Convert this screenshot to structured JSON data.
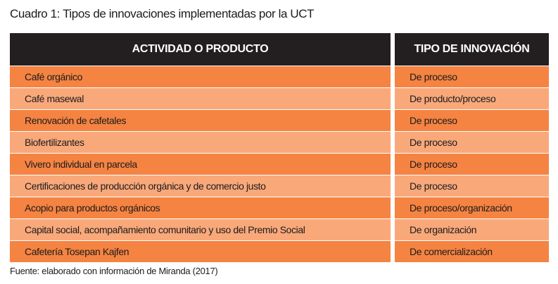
{
  "caption": "Cuadro 1: Tipos de innovaciones implementadas por la UCT",
  "headers": [
    "ACTIVIDAD O PRODUCTO",
    "TIPO DE INNOVACIÓN"
  ],
  "rows": [
    [
      "Café orgánico",
      "De proceso"
    ],
    [
      "Café masewal",
      "De producto/proceso"
    ],
    [
      "Renovación de cafetales",
      "De proceso"
    ],
    [
      "Biofertilizantes",
      "De proceso"
    ],
    [
      "Vivero individual en parcela",
      "De proceso"
    ],
    [
      "Certificaciones de producción orgánica y de comercio justo",
      "De proceso"
    ],
    [
      "Acopio para productos orgánicos",
      "De proceso/organización"
    ],
    [
      "Capital social, acompañamiento comunitario y uso del Premio Social",
      "De organización"
    ],
    [
      "Cafetería Tosepan Kajfen",
      "De comercialización"
    ]
  ],
  "footer": "Fuente: elaborado con información de Miranda (2017)",
  "colors": {
    "header_bg": "#231f20",
    "row_dark": "#f58342",
    "row_light": "#f9a87a"
  }
}
